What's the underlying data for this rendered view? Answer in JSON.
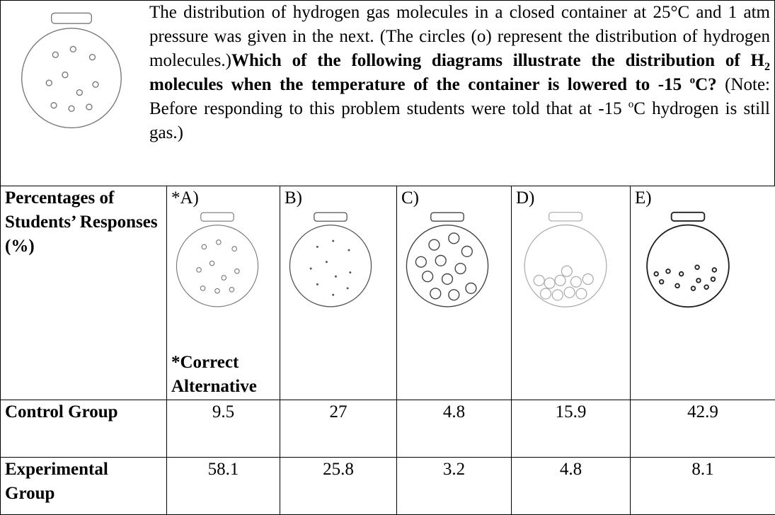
{
  "question": {
    "text": "The distribution of hydrogen gas molecules in a closed container at 25°C and 1 atm pressure was given in the next. (The circles (o) represent the distribution of hydrogen molecules.)",
    "bold": "Which of the following diagrams illustrate the distribution of H",
    "subscript": "2",
    "bold_continued": " molecules when the temperature of the container is lowered to -15 ",
    "superscript": "o",
    "bold_end": "C?"
  },
  "note": {
    "text": "(Note: Before responding to this problem students were told that at -15 ",
    "superscript": "o",
    "text_end": "C hydrogen is still gas.)"
  },
  "table": {
    "header": [
      "Percentages of Students’ Responses (%)",
      "*A)",
      "B)",
      "C)",
      "D)",
      "E)"
    ],
    "correct_note": "*Correct Alternative",
    "rows": [
      [
        "Control Group",
        9.5,
        27,
        4.8,
        15.9,
        42.9
      ],
      [
        "Experimental Group",
        58.1,
        25.8,
        3.2,
        4.8,
        8.1
      ]
    ]
  }
}
